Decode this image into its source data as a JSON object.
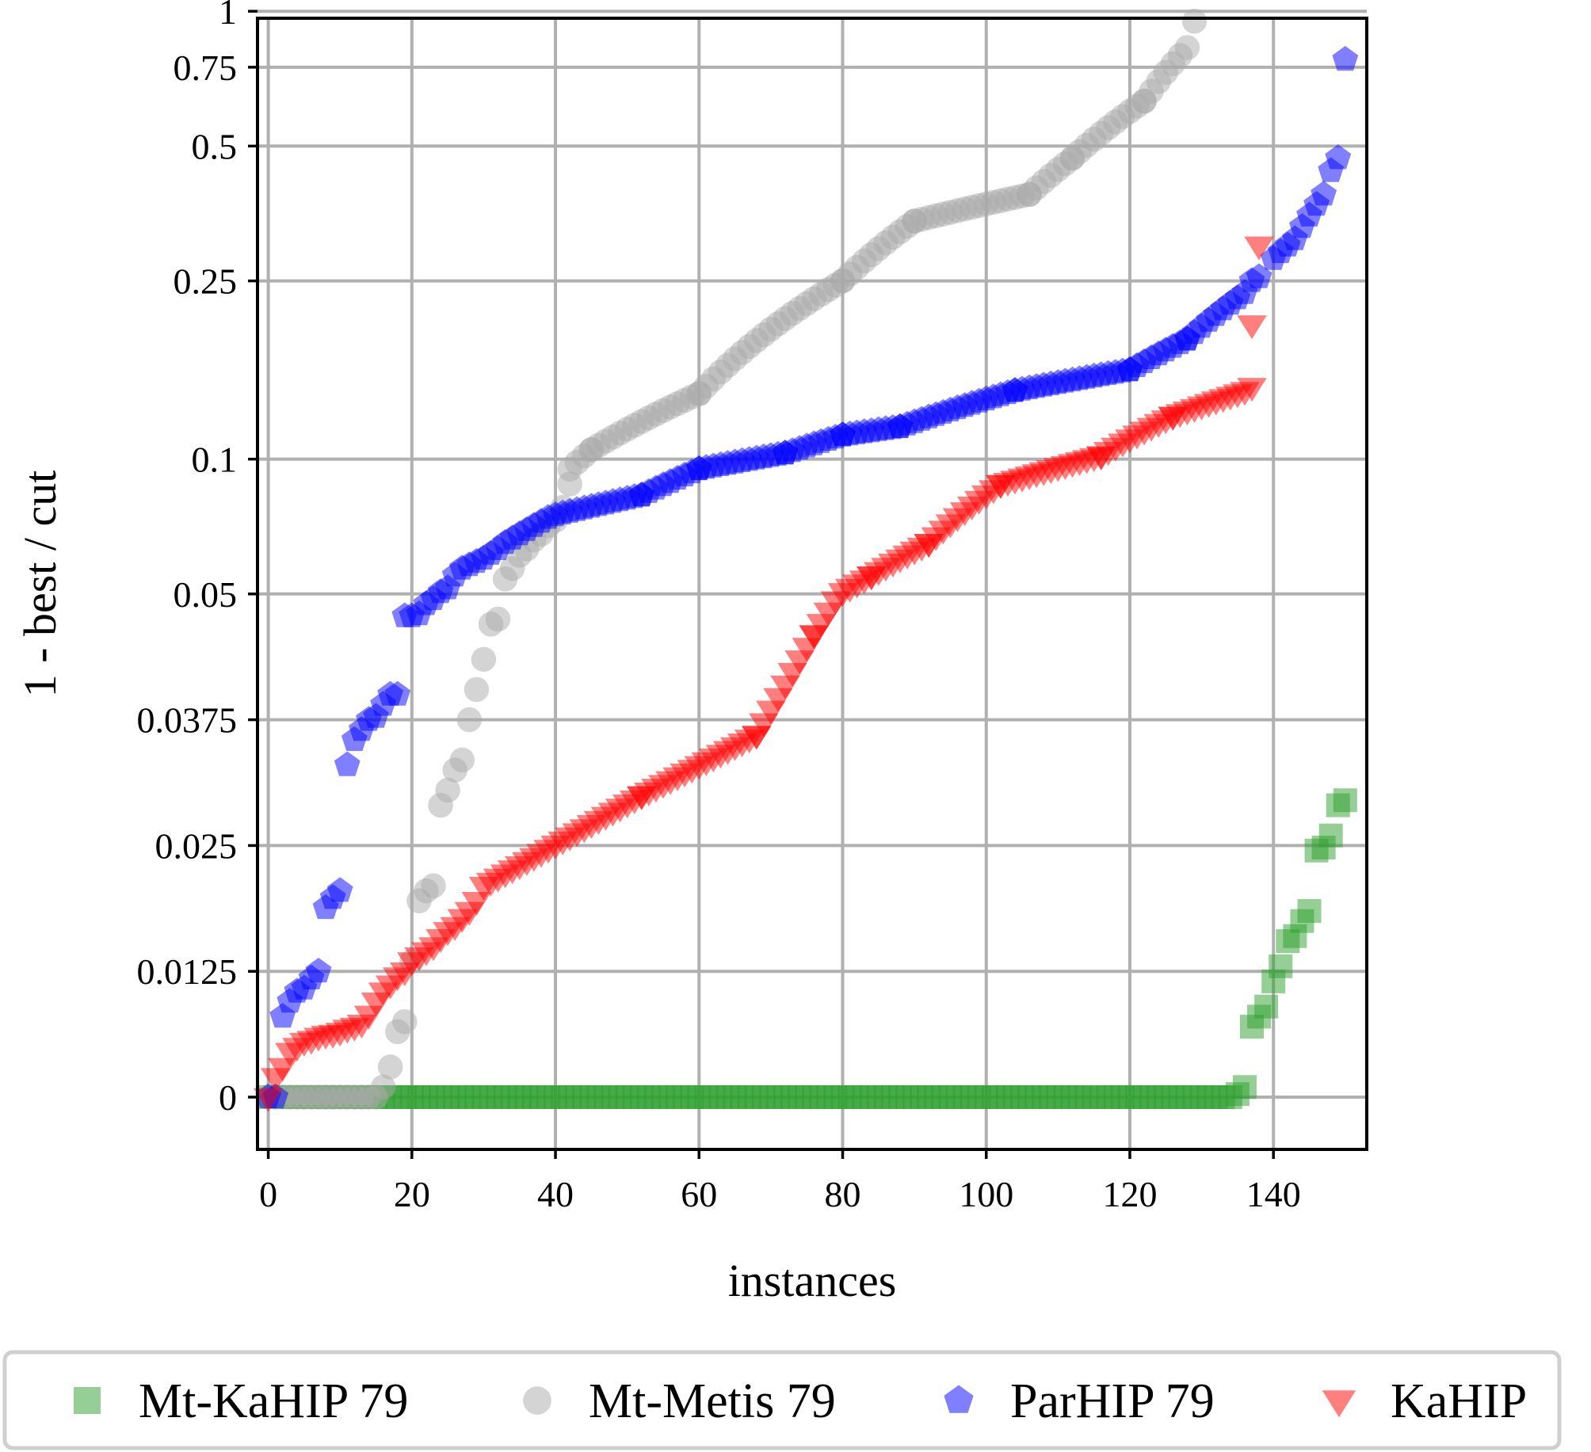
{
  "chart_data": {
    "type": "scatter",
    "title": "",
    "xlabel": "instances",
    "ylabel": "1 - best / cut",
    "xlim": [
      -1.5,
      153
    ],
    "x_ticks": [
      0,
      20,
      40,
      60,
      80,
      100,
      120,
      140
    ],
    "y_ticks": [
      {
        "value": 0,
        "label": "0"
      },
      {
        "value": 0.0125,
        "label": "0.0125"
      },
      {
        "value": 0.025,
        "label": "0.025"
      },
      {
        "value": 0.0375,
        "label": "0.0375"
      },
      {
        "value": 0.05,
        "label": "0.05"
      },
      {
        "value": 0.1,
        "label": "0.1"
      },
      {
        "value": 0.25,
        "label": "0.25"
      },
      {
        "value": 0.5,
        "label": "0.5"
      },
      {
        "value": 0.75,
        "label": "0.75"
      },
      {
        "value": 1,
        "label": "1"
      }
    ],
    "y_scale": "piecewise (linear 0–0.05 with equal spacing per 0.0125, logarithmic 0.05–1)",
    "grid": true,
    "legend_position": "bottom",
    "series": [
      {
        "name": "Mt-KaHIP 79",
        "marker": "square",
        "color": "#2ca02c",
        "segments": [
          {
            "x_from": 0,
            "x_to": 134,
            "y_from": 0,
            "y_to": 0
          },
          {
            "x_from": 135,
            "x_to": 136,
            "y_from": 0.0003,
            "y_to": 0.001
          }
        ],
        "points": [
          [
            137,
            0.007
          ],
          [
            138,
            0.008
          ],
          [
            139,
            0.009
          ],
          [
            140,
            0.0115
          ],
          [
            141,
            0.013
          ],
          [
            142,
            0.0155
          ],
          [
            143,
            0.016
          ],
          [
            144,
            0.0175
          ],
          [
            145,
            0.0185
          ],
          [
            146,
            0.0245
          ],
          [
            147,
            0.0248
          ],
          [
            148,
            0.026
          ],
          [
            149,
            0.029
          ],
          [
            150,
            0.0295
          ]
        ]
      },
      {
        "name": "Mt-Metis 79",
        "marker": "circle",
        "color": "#a9a9a9",
        "segments": [
          {
            "x_from": 0,
            "x_to": 15,
            "y_from": 0,
            "y_to": 0
          },
          {
            "x_from": 42,
            "x_to": 45,
            "y_from": 0.095,
            "y_to": 0.105
          },
          {
            "x_from": 45,
            "x_to": 60,
            "y_from": 0.105,
            "y_to": 0.14
          },
          {
            "x_from": 60,
            "x_to": 80,
            "y_from": 0.14,
            "y_to": 0.25
          },
          {
            "x_from": 80,
            "x_to": 90,
            "y_from": 0.25,
            "y_to": 0.34
          },
          {
            "x_from": 90,
            "x_to": 106,
            "y_from": 0.34,
            "y_to": 0.39
          },
          {
            "x_from": 106,
            "x_to": 112,
            "y_from": 0.39,
            "y_to": 0.47
          },
          {
            "x_from": 112,
            "x_to": 122,
            "y_from": 0.47,
            "y_to": 0.63
          },
          {
            "x_from": 122,
            "x_to": 128,
            "y_from": 0.63,
            "y_to": 0.83
          }
        ],
        "points": [
          [
            16,
            0.001
          ],
          [
            17,
            0.003
          ],
          [
            18,
            0.0065
          ],
          [
            19,
            0.0075
          ],
          [
            20,
            0.0135
          ],
          [
            21,
            0.0195
          ],
          [
            22,
            0.0205
          ],
          [
            23,
            0.021
          ],
          [
            24,
            0.029
          ],
          [
            25,
            0.0305
          ],
          [
            26,
            0.0325
          ],
          [
            27,
            0.0335
          ],
          [
            28,
            0.0375
          ],
          [
            29,
            0.0405
          ],
          [
            30,
            0.0435
          ],
          [
            31,
            0.047
          ],
          [
            32,
            0.0475
          ],
          [
            33,
            0.054
          ],
          [
            34,
            0.057
          ],
          [
            35,
            0.061
          ],
          [
            36,
            0.063
          ],
          [
            37,
            0.066
          ],
          [
            38,
            0.068
          ],
          [
            39,
            0.071
          ],
          [
            40,
            0.073
          ],
          [
            41,
            0.078
          ],
          [
            42,
            0.088
          ],
          [
            129,
            0.95
          ]
        ]
      },
      {
        "name": "ParHIP 79",
        "marker": "pentagon",
        "color": "#0000ff",
        "segments": [
          {
            "x_from": 40,
            "x_to": 52,
            "y_from": 0.075,
            "y_to": 0.083
          },
          {
            "x_from": 52,
            "x_to": 60,
            "y_from": 0.083,
            "y_to": 0.095
          },
          {
            "x_from": 60,
            "x_to": 72,
            "y_from": 0.095,
            "y_to": 0.103
          },
          {
            "x_from": 72,
            "x_to": 80,
            "y_from": 0.103,
            "y_to": 0.113
          },
          {
            "x_from": 80,
            "x_to": 88,
            "y_from": 0.113,
            "y_to": 0.118
          },
          {
            "x_from": 88,
            "x_to": 104,
            "y_from": 0.118,
            "y_to": 0.142
          },
          {
            "x_from": 104,
            "x_to": 120,
            "y_from": 0.142,
            "y_to": 0.158
          },
          {
            "x_from": 120,
            "x_to": 128,
            "y_from": 0.158,
            "y_to": 0.185
          },
          {
            "x_from": 128,
            "x_to": 136,
            "y_from": 0.185,
            "y_to": 0.235
          }
        ],
        "points": [
          [
            0,
            0
          ],
          [
            1,
            0
          ],
          [
            2,
            0.008
          ],
          [
            3,
            0.0095
          ],
          [
            4,
            0.0105
          ],
          [
            5,
            0.0108
          ],
          [
            6,
            0.0118
          ],
          [
            7,
            0.0125
          ],
          [
            8,
            0.0188
          ],
          [
            9,
            0.0198
          ],
          [
            10,
            0.0205
          ],
          [
            11,
            0.033
          ],
          [
            12,
            0.0355
          ],
          [
            13,
            0.0365
          ],
          [
            14,
            0.0375
          ],
          [
            15,
            0.0378
          ],
          [
            16,
            0.039
          ],
          [
            17,
            0.04
          ],
          [
            18,
            0.04
          ],
          [
            19,
            0.0478
          ],
          [
            20,
            0.0478
          ],
          [
            21,
            0.048
          ],
          [
            22,
            0.049
          ],
          [
            23,
            0.0495
          ],
          [
            24,
            0.0505
          ],
          [
            25,
            0.0515
          ],
          [
            26,
            0.055
          ],
          [
            27,
            0.057
          ],
          [
            28,
            0.058
          ],
          [
            29,
            0.059
          ],
          [
            30,
            0.06
          ],
          [
            31,
            0.0615
          ],
          [
            32,
            0.063
          ],
          [
            33,
            0.065
          ],
          [
            34,
            0.0665
          ],
          [
            35,
            0.068
          ],
          [
            36,
            0.0695
          ],
          [
            37,
            0.071
          ],
          [
            38,
            0.0725
          ],
          [
            39,
            0.074
          ],
          [
            137,
            0.25
          ],
          [
            138,
            0.255
          ],
          [
            140,
            0.28
          ],
          [
            141,
            0.29
          ],
          [
            142,
            0.3
          ],
          [
            143,
            0.31
          ],
          [
            144,
            0.33
          ],
          [
            145,
            0.35
          ],
          [
            146,
            0.37
          ],
          [
            147,
            0.39
          ],
          [
            148,
            0.44
          ],
          [
            149,
            0.47
          ],
          [
            150,
            0.78
          ]
        ]
      },
      {
        "name": "KaHIP",
        "marker": "triangle-down",
        "color": "#ff0000",
        "segments": [
          {
            "x_from": 30,
            "x_to": 52,
            "y_from": 0.021,
            "y_to": 0.03
          },
          {
            "x_from": 52,
            "x_to": 68,
            "y_from": 0.03,
            "y_to": 0.036
          },
          {
            "x_from": 68,
            "x_to": 76,
            "y_from": 0.036,
            "y_to": 0.046
          },
          {
            "x_from": 76,
            "x_to": 84,
            "y_from": 0.046,
            "y_to": 0.055
          },
          {
            "x_from": 84,
            "x_to": 92,
            "y_from": 0.055,
            "y_to": 0.065
          },
          {
            "x_from": 92,
            "x_to": 102,
            "y_from": 0.065,
            "y_to": 0.088
          },
          {
            "x_from": 102,
            "x_to": 116,
            "y_from": 0.088,
            "y_to": 0.102
          },
          {
            "x_from": 116,
            "x_to": 126,
            "y_from": 0.102,
            "y_to": 0.125
          },
          {
            "x_from": 126,
            "x_to": 136,
            "y_from": 0.125,
            "y_to": 0.142
          }
        ],
        "points": [
          [
            0,
            0
          ],
          [
            1,
            0.002
          ],
          [
            2,
            0.003
          ],
          [
            3,
            0.0045
          ],
          [
            4,
            0.005
          ],
          [
            5,
            0.0055
          ],
          [
            6,
            0.0057
          ],
          [
            7,
            0.006
          ],
          [
            8,
            0.0062
          ],
          [
            9,
            0.0063
          ],
          [
            10,
            0.0065
          ],
          [
            11,
            0.0068
          ],
          [
            12,
            0.007
          ],
          [
            13,
            0.0073
          ],
          [
            14,
            0.0082
          ],
          [
            15,
            0.0095
          ],
          [
            16,
            0.0105
          ],
          [
            17,
            0.0112
          ],
          [
            18,
            0.012
          ],
          [
            19,
            0.0125
          ],
          [
            20,
            0.0135
          ],
          [
            21,
            0.014
          ],
          [
            22,
            0.0145
          ],
          [
            23,
            0.015
          ],
          [
            24,
            0.0158
          ],
          [
            25,
            0.0165
          ],
          [
            26,
            0.017
          ],
          [
            27,
            0.0178
          ],
          [
            28,
            0.0185
          ],
          [
            29,
            0.0195
          ],
          [
            137,
            0.145
          ],
          [
            137,
            0.2
          ],
          [
            138,
            0.3
          ]
        ]
      }
    ]
  },
  "legend": {
    "items": [
      {
        "label": "Mt-KaHIP 79",
        "marker": "square",
        "color": "#2ca02c"
      },
      {
        "label": "Mt-Metis 79",
        "marker": "circle",
        "color": "#a9a9a9"
      },
      {
        "label": "ParHIP 79",
        "marker": "pentagon",
        "color": "#0000ff"
      },
      {
        "label": "KaHIP",
        "marker": "triangle-down",
        "color": "#ff0000"
      }
    ]
  }
}
